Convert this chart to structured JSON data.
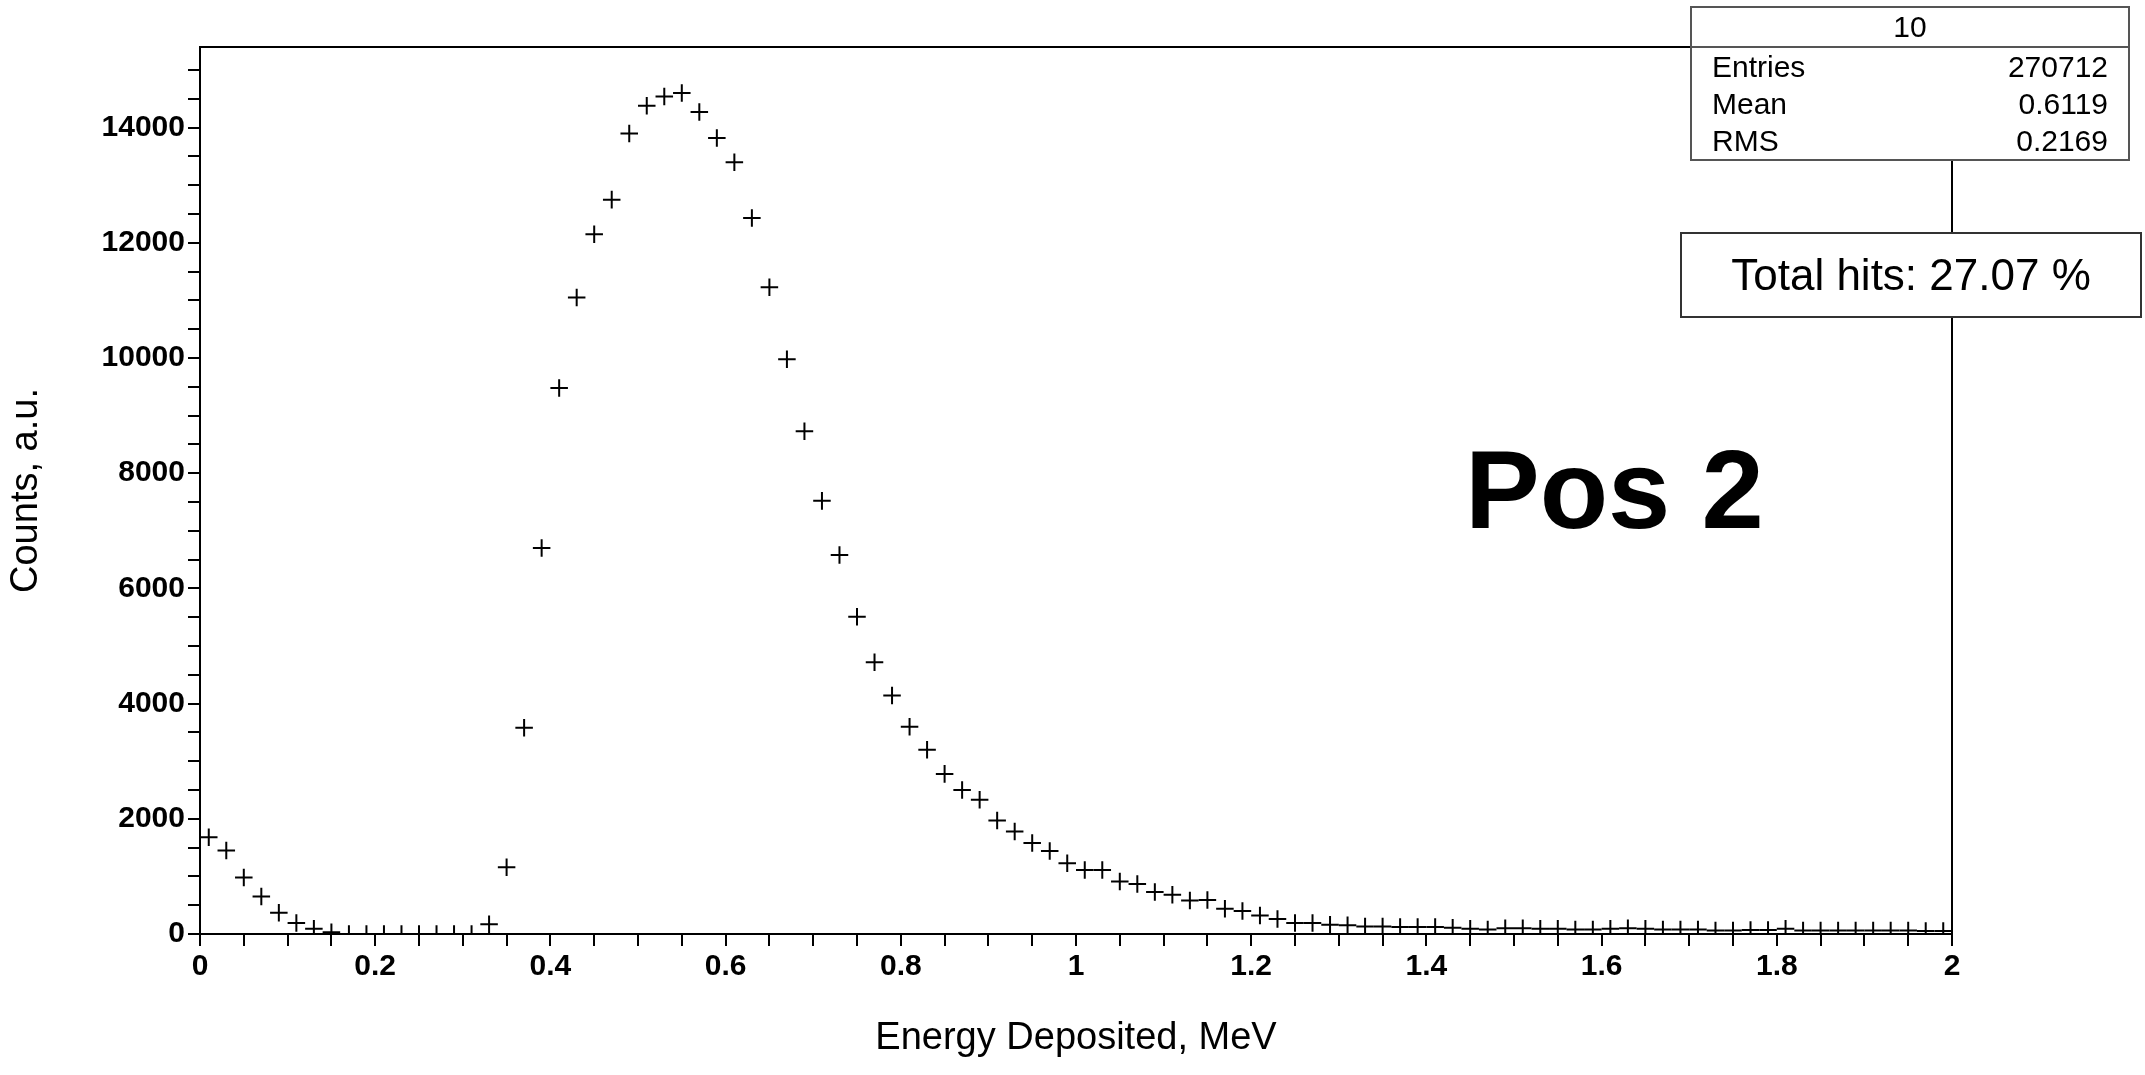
{
  "chart_data": {
    "type": "scatter",
    "xlabel": "Energy Deposited, MeV",
    "ylabel": "Counts, a.u.",
    "x": [
      0.01,
      0.03,
      0.05,
      0.07,
      0.09,
      0.11,
      0.13,
      0.15,
      0.17,
      0.19,
      0.21,
      0.23,
      0.25,
      0.27,
      0.29,
      0.31,
      0.33,
      0.35,
      0.37,
      0.39,
      0.41,
      0.43,
      0.45,
      0.47,
      0.49,
      0.51,
      0.53,
      0.55,
      0.57,
      0.59,
      0.61,
      0.63,
      0.65,
      0.67,
      0.69,
      0.71,
      0.73,
      0.75,
      0.77,
      0.79,
      0.81,
      0.83,
      0.85,
      0.87,
      0.89,
      0.91,
      0.93,
      0.95,
      0.97,
      0.99,
      1.01,
      1.03,
      1.05,
      1.07,
      1.09,
      1.11,
      1.13,
      1.15,
      1.17,
      1.19,
      1.21,
      1.23,
      1.25,
      1.27,
      1.29,
      1.31,
      1.33,
      1.35,
      1.37,
      1.39,
      1.41,
      1.43,
      1.45,
      1.47,
      1.49,
      1.51,
      1.53,
      1.55,
      1.57,
      1.59,
      1.61,
      1.63,
      1.65,
      1.67,
      1.69,
      1.71,
      1.73,
      1.75,
      1.77,
      1.79,
      1.81,
      1.83,
      1.85,
      1.87,
      1.89,
      1.91,
      1.93,
      1.95,
      1.97,
      1.99
    ],
    "values": [
      1680,
      1450,
      980,
      650,
      370,
      190,
      90,
      30,
      0,
      0,
      0,
      0,
      0,
      0,
      0,
      0,
      170,
      1160,
      3580,
      6700,
      9480,
      11050,
      12150,
      12750,
      13900,
      14380,
      14540,
      14600,
      14270,
      13820,
      13400,
      12430,
      11230,
      9980,
      8730,
      7520,
      6580,
      5510,
      4720,
      4140,
      3600,
      3200,
      2780,
      2500,
      2330,
      1970,
      1780,
      1580,
      1440,
      1230,
      1110,
      1110,
      910,
      870,
      730,
      680,
      580,
      590,
      440,
      400,
      320,
      260,
      190,
      190,
      160,
      150,
      130,
      130,
      120,
      120,
      120,
      110,
      90,
      80,
      100,
      100,
      90,
      90,
      80,
      80,
      90,
      100,
      90,
      80,
      80,
      80,
      60,
      60,
      70,
      70,
      90,
      60,
      60,
      60,
      60,
      60,
      60,
      60,
      50,
      50
    ],
    "color": "#000000",
    "marker": "cross",
    "xlim": [
      0,
      2
    ],
    "xticks": [
      0,
      {
        "value": 0.05,
        "label": null
      },
      {
        "value": 0.1,
        "label": null
      },
      {
        "value": 0.15,
        "label": null
      },
      0.2,
      {
        "value": 0.25,
        "label": null
      },
      {
        "value": 0.3,
        "label": null
      },
      {
        "value": 0.35,
        "label": null
      },
      0.4,
      {
        "value": 0.45,
        "label": null
      },
      {
        "value": 0.5,
        "label": null
      },
      {
        "value": 0.55,
        "label": null
      },
      0.6,
      {
        "value": 0.65,
        "label": null
      },
      {
        "value": 0.7,
        "label": null
      },
      {
        "value": 0.75,
        "label": null
      },
      0.8,
      {
        "value": 0.85,
        "label": null
      },
      {
        "value": 0.9,
        "label": null
      },
      {
        "value": 0.95,
        "label": null
      },
      1,
      {
        "value": 1.05,
        "label": null
      },
      {
        "value": 1.1,
        "label": null
      },
      {
        "value": 1.15,
        "label": null
      },
      1.2,
      {
        "value": 1.25,
        "label": null
      },
      {
        "value": 1.3,
        "label": null
      },
      {
        "value": 1.35,
        "label": null
      },
      1.4,
      {
        "value": 1.45,
        "label": null
      },
      {
        "value": 1.5,
        "label": null
      },
      {
        "value": 1.55,
        "label": null
      },
      1.6,
      {
        "value": 1.65,
        "label": null
      },
      {
        "value": 1.7,
        "label": null
      },
      {
        "value": 1.75,
        "label": null
      },
      1.8,
      {
        "value": 1.85,
        "label": null
      },
      {
        "value": 1.9,
        "label": null
      },
      {
        "value": 1.95,
        "label": null
      },
      2
    ],
    "ylim": [
      0,
      15400
    ],
    "yticks": [
      0,
      {
        "value": 500,
        "label": null
      },
      {
        "value": 1000,
        "label": null
      },
      {
        "value": 1500,
        "label": null
      },
      2000,
      {
        "value": 2500,
        "label": null
      },
      {
        "value": 3000,
        "label": null
      },
      {
        "value": 3500,
        "label": null
      },
      4000,
      {
        "value": 4500,
        "label": null
      },
      {
        "value": 5000,
        "label": null
      },
      {
        "value": 5500,
        "label": null
      },
      6000,
      {
        "value": 6500,
        "label": null
      },
      {
        "value": 7000,
        "label": null
      },
      {
        "value": 7500,
        "label": null
      },
      8000,
      {
        "value": 8500,
        "label": null
      },
      {
        "value": 9000,
        "label": null
      },
      {
        "value": 9500,
        "label": null
      },
      10000,
      {
        "value": 10500,
        "label": null
      },
      {
        "value": 11000,
        "label": null
      },
      {
        "value": 11500,
        "label": null
      },
      12000,
      {
        "value": 12500,
        "label": null
      },
      {
        "value": 13000,
        "label": null
      },
      {
        "value": 13500,
        "label": null
      },
      14000,
      {
        "value": 14500,
        "label": null
      },
      {
        "value": 15000,
        "label": null
      }
    ],
    "grid": false,
    "legend": false,
    "annotations": [
      "10",
      "Entries 270712",
      "Mean 0.6119",
      "RMS 0.2169",
      "Total hits: 27.07 %",
      "Pos 2"
    ]
  }
}
